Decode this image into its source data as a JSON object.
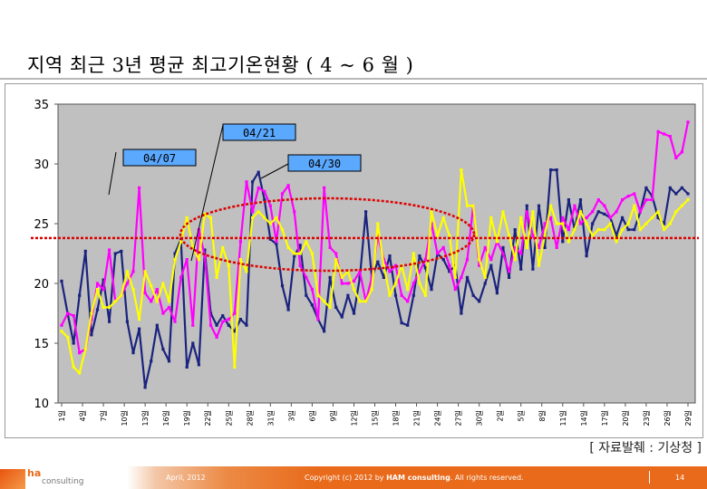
{
  "slide": {
    "title": "지역  최근 3년 평균 최고기온현황 ( 4 ~ 6 월 )",
    "source_note": "[ 자료발췌 : 기상청 ]"
  },
  "footer": {
    "logo_mark": "ha",
    "logo_text": "consulting",
    "date": "April, 2012",
    "copyright_prefix": "Copyright (c) 2012 by ",
    "copyright_brand": "HAM consulting",
    "copyright_suffix": ". All rights reserved.",
    "page_number": "14"
  },
  "chart_data": {
    "type": "line",
    "ylim": [
      10,
      35
    ],
    "yticks": [
      10,
      15,
      20,
      25,
      30,
      35
    ],
    "x_tick_labels": [
      "1일",
      "4일",
      "7일",
      "10일",
      "13일",
      "16일",
      "19일",
      "22일",
      "25일",
      "28일",
      "31일",
      "3일",
      "6일",
      "9일",
      "12일",
      "15일",
      "18일",
      "21일",
      "24일",
      "27일",
      "30일",
      "2일",
      "5일",
      "8일",
      "11일",
      "14일",
      "17일",
      "20일",
      "23일",
      "26일",
      "29일"
    ],
    "grid": false,
    "plot_background": "#c0c0c0",
    "reference_line_value": 23.8,
    "callouts": [
      "04/07",
      "04/21",
      "04/30"
    ],
    "series": [
      {
        "color": "#1a237e",
        "values": [
          20.2,
          17.5,
          15,
          19,
          22.7,
          15.7,
          17.8,
          20.3,
          16.8,
          22.5,
          22.7,
          16.8,
          14.2,
          16.2,
          11.3,
          13.5,
          16.5,
          14.5,
          13.5,
          22.5,
          23.7,
          13,
          15,
          13.2,
          22.8,
          17.5,
          16.5,
          17.3,
          16.5,
          16,
          17,
          16.5,
          28.5,
          29.3,
          27,
          23.7,
          23.3,
          19.8,
          17.8,
          22.3,
          23.2,
          19,
          18.2,
          17,
          16,
          20.5,
          18,
          17.2,
          19,
          17.5,
          20.5,
          26,
          20.5,
          21.8,
          20.5,
          22.3,
          19,
          16.7,
          16.5,
          19,
          22.3,
          21.3,
          19.5,
          22.5,
          22,
          21,
          21.5,
          17.5,
          20.5,
          19,
          18.5,
          20,
          21.5,
          19.2,
          23,
          20.5,
          24.5,
          21.2,
          26.5,
          21.2,
          26.5,
          23,
          29.5,
          29.5,
          23.5,
          27,
          24.5,
          27,
          22.3,
          25,
          26,
          25.8,
          25.5,
          24,
          25.5,
          24.5,
          24.5,
          26,
          28,
          27.3,
          25.5,
          25,
          28,
          27.5,
          28,
          27.5
        ]
      },
      {
        "color": "#ff00ff",
        "values": [
          16.5,
          17.5,
          17.3,
          14.2,
          14.5,
          17,
          20,
          19.5,
          22.8,
          18.5,
          19,
          20,
          21,
          28,
          19.2,
          18.5,
          19.5,
          17.5,
          18,
          16.8,
          20.5,
          22,
          16.5,
          24.5,
          22.3,
          16.5,
          15.5,
          16.8,
          17,
          17.5,
          23.5,
          28.5,
          26,
          28,
          27.7,
          26.5,
          23.5,
          27.5,
          28.2,
          26,
          21.5,
          20.5,
          19.5,
          17,
          28,
          23,
          22.5,
          20,
          20,
          20.2,
          21,
          18.5,
          20.5,
          24,
          22,
          21,
          21.5,
          19,
          18.5,
          20,
          21,
          22,
          25,
          22.5,
          23,
          21.5,
          19.5,
          20.5,
          22,
          26.5,
          21.5,
          23,
          22,
          23.5,
          22.5,
          21,
          23,
          22.5,
          26,
          24,
          23,
          25,
          25.5,
          23,
          25.5,
          24.5,
          26.5,
          25,
          25.5,
          26,
          27,
          26.5,
          25.5,
          26,
          27,
          27.3,
          27.5,
          26,
          27,
          27,
          32.7,
          32.5,
          32.3,
          30.5,
          31,
          33.5
        ]
      },
      {
        "color": "#ffff00",
        "values": [
          16,
          15.5,
          13,
          12.5,
          14.5,
          17.5,
          19.5,
          18,
          18,
          18.5,
          19,
          21,
          19.5,
          17,
          21,
          19.8,
          18.5,
          20,
          18.5,
          22,
          23.5,
          25.5,
          23,
          22,
          25.8,
          25.5,
          20.5,
          23,
          21.5,
          13,
          22,
          21,
          25.5,
          26,
          25.5,
          25,
          25.5,
          24.5,
          23,
          22.5,
          22.5,
          23.5,
          22.5,
          19,
          18.5,
          18,
          22,
          20.5,
          21,
          19.5,
          18.5,
          18.5,
          19.5,
          25,
          21.5,
          19,
          20,
          21.5,
          19.5,
          22.5,
          20,
          19,
          26,
          24,
          25.5,
          24,
          20.5,
          29.5,
          26.5,
          26.5,
          22,
          20.5,
          25.5,
          23.5,
          26,
          24,
          22,
          25.5,
          23,
          26,
          21.5,
          24,
          26.5,
          25,
          25,
          23.5,
          24.5,
          26,
          25,
          24,
          24.5,
          24.5,
          25,
          23.5,
          24.5,
          25,
          26.5,
          24.5,
          25,
          25.5,
          26,
          24.5,
          25,
          26,
          26.5,
          27
        ]
      }
    ]
  }
}
